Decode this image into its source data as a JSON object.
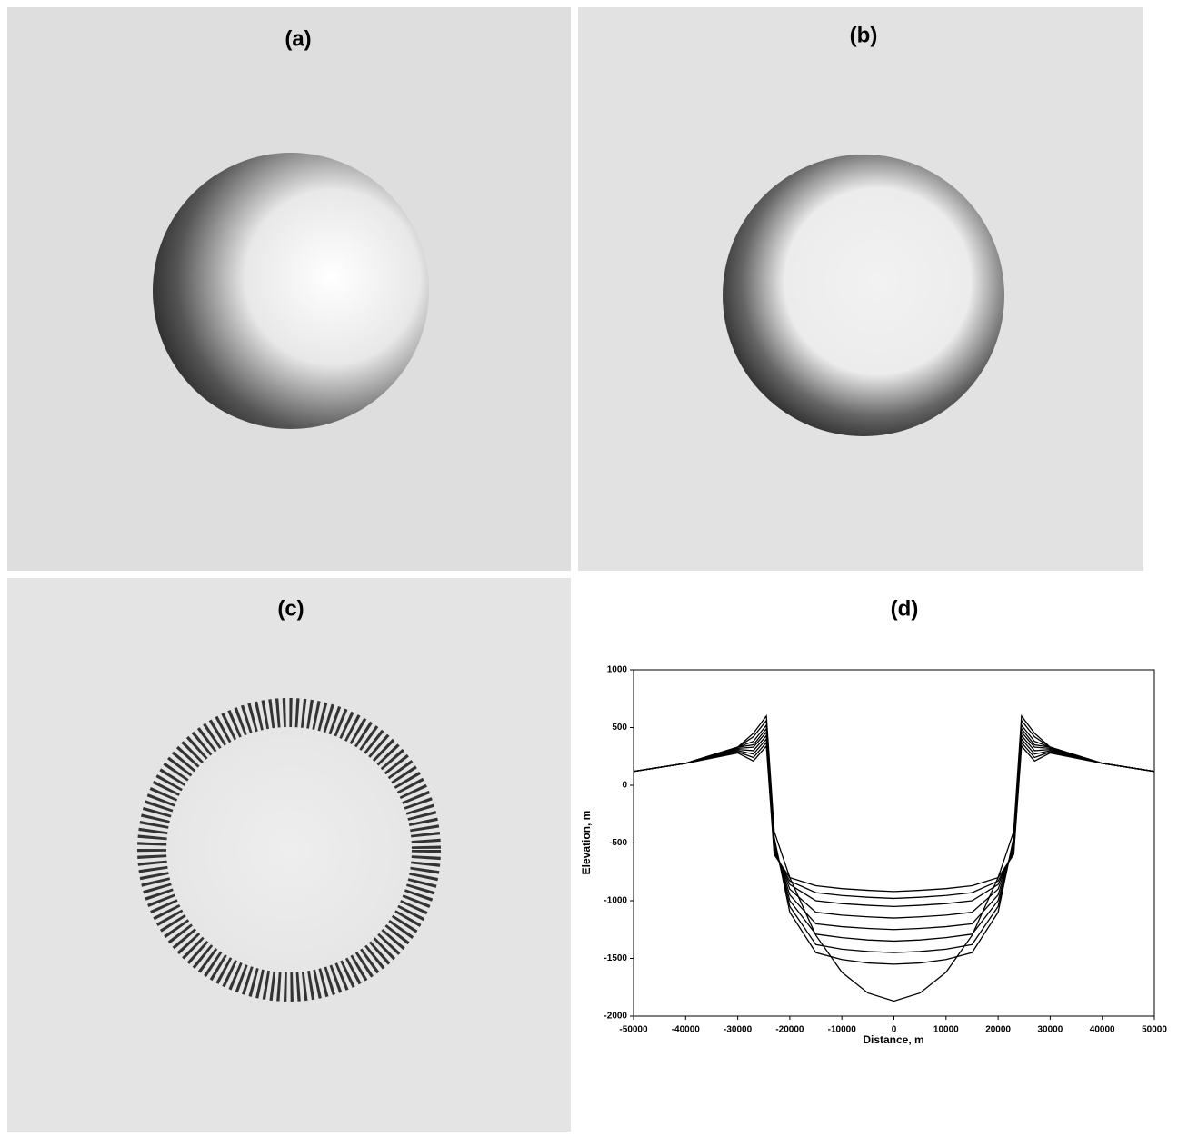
{
  "panels": [
    {
      "label": "(a)"
    },
    {
      "label": "(b)"
    },
    {
      "label": "(c)"
    }
  ],
  "chart_data": {
    "type": "line",
    "title": "(d)",
    "x_label": "Distance, m",
    "y_label": "Elevation, m",
    "color": "#000000",
    "xlim": [
      -50000,
      50000
    ],
    "ylim": [
      -2000,
      1000
    ],
    "xticks": [
      -50000,
      -40000,
      -30000,
      -20000,
      -10000,
      0,
      10000,
      20000,
      30000,
      40000,
      50000
    ],
    "yticks": [
      -2000,
      -1500,
      -1000,
      -500,
      0,
      500,
      1000
    ],
    "x": [
      -50000,
      -40000,
      -30000,
      -27000,
      -24500,
      -23000,
      -20000,
      -15000,
      -10000,
      -5000,
      0,
      5000,
      10000,
      15000,
      20000,
      23000,
      24500,
      27000,
      30000,
      40000,
      50000
    ],
    "series": [
      {
        "values": [
          120,
          190,
          330,
          450,
          600,
          -400,
          -800,
          -1300,
          -1620,
          -1800,
          -1870,
          -1800,
          -1620,
          -1300,
          -800,
          -400,
          600,
          450,
          330,
          190,
          120
        ]
      },
      {
        "values": [
          120,
          190,
          330,
          420,
          560,
          -450,
          -1100,
          -1450,
          -1510,
          -1540,
          -1550,
          -1540,
          -1510,
          -1450,
          -1100,
          -450,
          560,
          420,
          330,
          190,
          120
        ]
      },
      {
        "values": [
          120,
          190,
          330,
          380,
          520,
          -480,
          -1050,
          -1380,
          -1420,
          -1440,
          -1450,
          -1440,
          -1420,
          -1380,
          -1050,
          -480,
          520,
          380,
          330,
          190,
          120
        ]
      },
      {
        "values": [
          120,
          190,
          330,
          350,
          490,
          -500,
          -1000,
          -1290,
          -1320,
          -1340,
          -1350,
          -1340,
          -1320,
          -1290,
          -1000,
          -500,
          490,
          350,
          330,
          190,
          120
        ]
      },
      {
        "values": [
          120,
          190,
          320,
          330,
          460,
          -520,
          -950,
          -1200,
          -1225,
          -1240,
          -1250,
          -1240,
          -1225,
          -1200,
          -950,
          -520,
          460,
          330,
          320,
          190,
          120
        ]
      },
      {
        "values": [
          120,
          190,
          310,
          300,
          430,
          -540,
          -900,
          -1100,
          -1125,
          -1140,
          -1150,
          -1140,
          -1125,
          -1100,
          -900,
          -540,
          430,
          300,
          310,
          190,
          120
        ]
      },
      {
        "values": [
          120,
          190,
          300,
          270,
          400,
          -560,
          -860,
          -1000,
          -1025,
          -1040,
          -1050,
          -1040,
          -1025,
          -1000,
          -860,
          -560,
          400,
          270,
          300,
          190,
          120
        ]
      },
      {
        "values": [
          120,
          190,
          290,
          240,
          370,
          -580,
          -830,
          -930,
          -955,
          -970,
          -980,
          -970,
          -955,
          -930,
          -830,
          -580,
          370,
          240,
          290,
          190,
          120
        ]
      },
      {
        "values": [
          120,
          190,
          280,
          210,
          340,
          -600,
          -800,
          -870,
          -895,
          -910,
          -920,
          -910,
          -895,
          -870,
          -800,
          -600,
          340,
          210,
          280,
          190,
          120
        ]
      }
    ]
  }
}
